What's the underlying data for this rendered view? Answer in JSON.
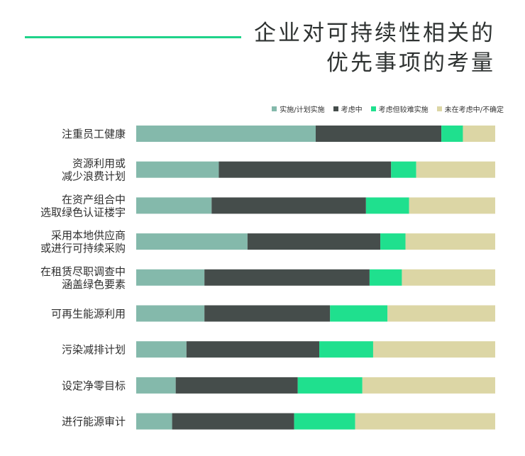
{
  "title": {
    "line1": "企业对可持续性相关的",
    "line2": "优先事项的考量"
  },
  "colors": {
    "accent_line": "#1fd38a"
  },
  "chart_data": {
    "type": "bar",
    "orientation": "horizontal",
    "stacked": true,
    "normalized_percent": true,
    "title": "企业对可持续性相关的优先事项的考量",
    "legend_position": "top-right",
    "grid": false,
    "categories": [
      [
        "注重员工健康"
      ],
      [
        "资源利用或",
        "减少浪费计划"
      ],
      [
        "在资产组合中",
        "选取绿色认证楼宇"
      ],
      [
        "采用本地供应商",
        "或进行可持续采购"
      ],
      [
        "在租赁尽职调查中",
        "涵盖绿色要素"
      ],
      [
        "可再生能源利用"
      ],
      [
        "污染减排计划"
      ],
      [
        "设定净零目标"
      ],
      [
        "进行能源审计"
      ]
    ],
    "series": [
      {
        "name": "实施/计划实施",
        "color": "#84b9ab",
        "values": [
          50,
          23,
          21,
          31,
          19,
          19,
          14,
          11,
          10
        ]
      },
      {
        "name": "考虑中",
        "color": "#454d4b",
        "values": [
          35,
          48,
          43,
          37,
          46,
          35,
          37,
          34,
          34
        ]
      },
      {
        "name": "考虑但较难实施",
        "color": "#1fe08e",
        "values": [
          6,
          7,
          12,
          7,
          9,
          16,
          15,
          18,
          17
        ]
      },
      {
        "name": "未在考虑中/不确定",
        "color": "#dcd6a5",
        "values": [
          9,
          22,
          24,
          25,
          26,
          30,
          34,
          37,
          39
        ]
      }
    ]
  }
}
